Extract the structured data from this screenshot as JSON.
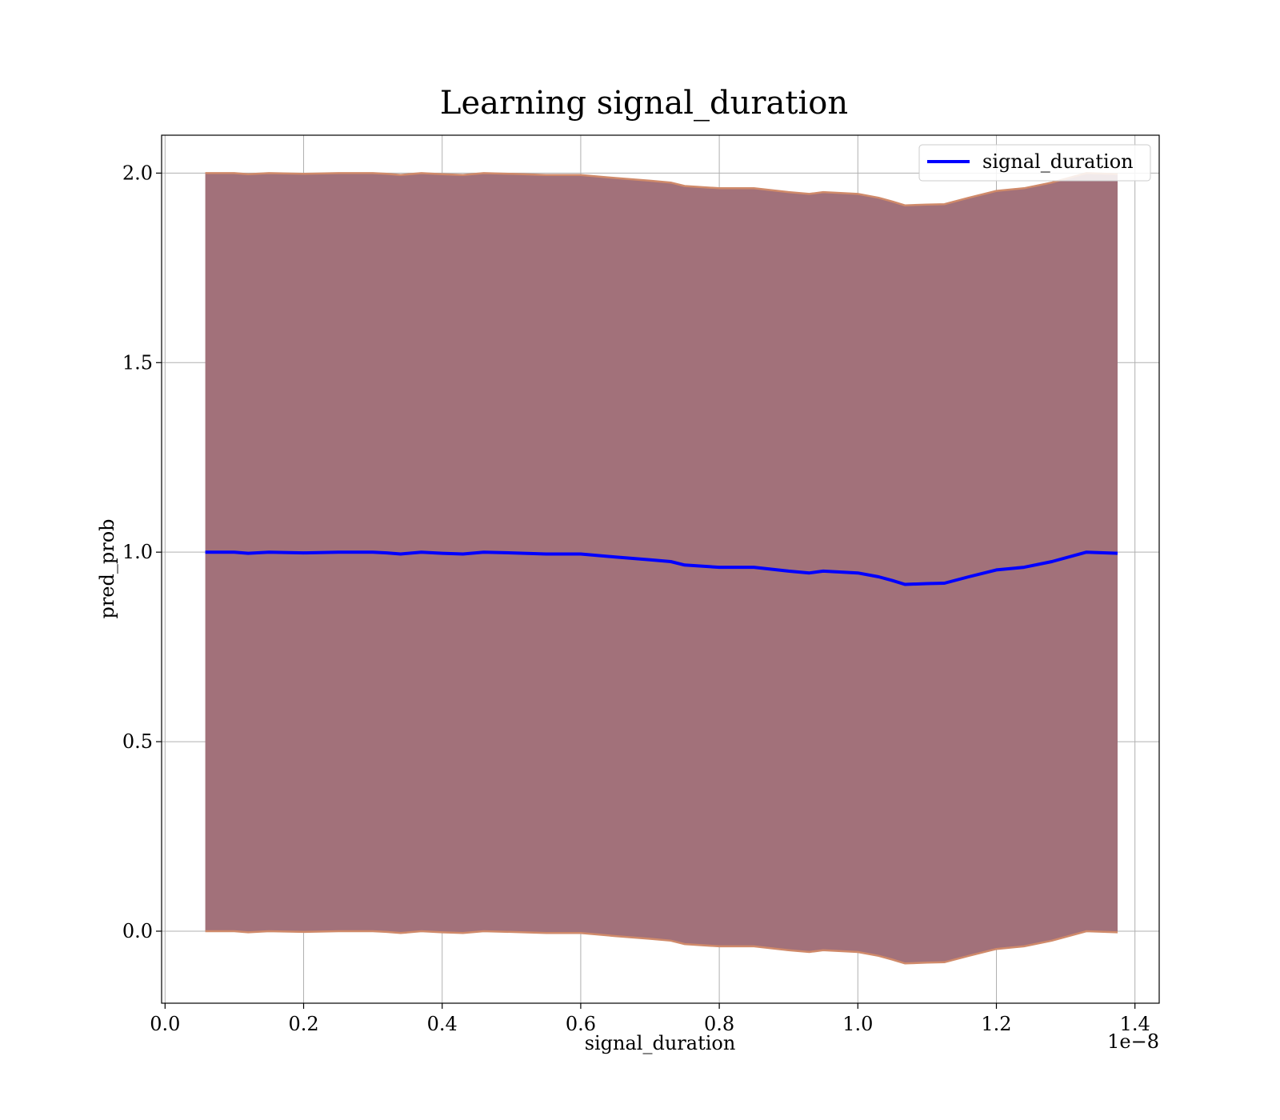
{
  "chart_data": {
    "type": "area",
    "title": "Learning signal_duration",
    "xlabel": "signal_duration",
    "ylabel": "pred_prob",
    "x_offset_label": "1e−8",
    "xlim": [
      -0.005,
      1.435
    ],
    "ylim": [
      -0.19,
      2.1
    ],
    "xticks": [
      0.0,
      0.2,
      0.4,
      0.6,
      0.8,
      1.0,
      1.2,
      1.4
    ],
    "xtick_labels": [
      "0.0",
      "0.2",
      "0.4",
      "0.6",
      "0.8",
      "1.0",
      "1.2",
      "1.4"
    ],
    "yticks": [
      0.0,
      0.5,
      1.0,
      1.5,
      2.0
    ],
    "ytick_labels": [
      "0.0",
      "0.5",
      "1.0",
      "1.5",
      "2.0"
    ],
    "grid": true,
    "legend": {
      "position": "top-right",
      "entries": [
        "signal_duration"
      ]
    },
    "colors": {
      "line": "#0000ff",
      "band_fill": "#a2717a",
      "band_edge": "#d08a6a",
      "grid": "#b0b0b0"
    },
    "series": [
      {
        "name": "signal_duration",
        "x": [
          0.058,
          0.1,
          0.12,
          0.15,
          0.2,
          0.25,
          0.3,
          0.32,
          0.34,
          0.37,
          0.4,
          0.43,
          0.46,
          0.5,
          0.55,
          0.6,
          0.65,
          0.7,
          0.73,
          0.75,
          0.8,
          0.85,
          0.9,
          0.93,
          0.95,
          1.0,
          1.03,
          1.05,
          1.068,
          1.1,
          1.125,
          1.16,
          1.2,
          1.24,
          1.28,
          1.33,
          1.375
        ],
        "y": [
          1.0,
          1.0,
          0.997,
          1.0,
          0.998,
          1.0,
          1.0,
          0.998,
          0.995,
          1.0,
          0.997,
          0.995,
          1.0,
          0.998,
          0.995,
          0.995,
          0.987,
          0.98,
          0.975,
          0.966,
          0.96,
          0.96,
          0.95,
          0.945,
          0.95,
          0.945,
          0.935,
          0.925,
          0.915,
          0.917,
          0.918,
          0.935,
          0.953,
          0.96,
          0.975,
          1.0,
          0.997
        ]
      }
    ],
    "band": {
      "x": [
        0.058,
        0.1,
        0.12,
        0.15,
        0.2,
        0.25,
        0.3,
        0.32,
        0.34,
        0.37,
        0.4,
        0.43,
        0.46,
        0.5,
        0.55,
        0.6,
        0.65,
        0.7,
        0.73,
        0.75,
        0.8,
        0.85,
        0.9,
        0.93,
        0.95,
        1.0,
        1.03,
        1.05,
        1.068,
        1.1,
        1.125,
        1.16,
        1.2,
        1.24,
        1.28,
        1.33,
        1.375
      ],
      "upper": [
        2.0,
        2.0,
        1.997,
        2.0,
        1.998,
        2.0,
        2.0,
        1.998,
        1.995,
        2.0,
        1.997,
        1.995,
        2.0,
        1.998,
        1.995,
        1.995,
        1.987,
        1.98,
        1.975,
        1.966,
        1.96,
        1.96,
        1.95,
        1.945,
        1.95,
        1.945,
        1.935,
        1.925,
        1.915,
        1.917,
        1.918,
        1.935,
        1.953,
        1.96,
        1.975,
        2.0,
        1.997
      ],
      "lower": [
        0.0,
        0.0,
        -0.003,
        0.0,
        -0.002,
        0.0,
        0.0,
        -0.002,
        -0.005,
        0.0,
        -0.003,
        -0.005,
        0.0,
        -0.002,
        -0.005,
        -0.005,
        -0.013,
        -0.02,
        -0.025,
        -0.034,
        -0.04,
        -0.04,
        -0.05,
        -0.055,
        -0.05,
        -0.055,
        -0.065,
        -0.075,
        -0.085,
        -0.083,
        -0.082,
        -0.065,
        -0.047,
        -0.04,
        -0.025,
        0.0,
        -0.003
      ]
    }
  }
}
